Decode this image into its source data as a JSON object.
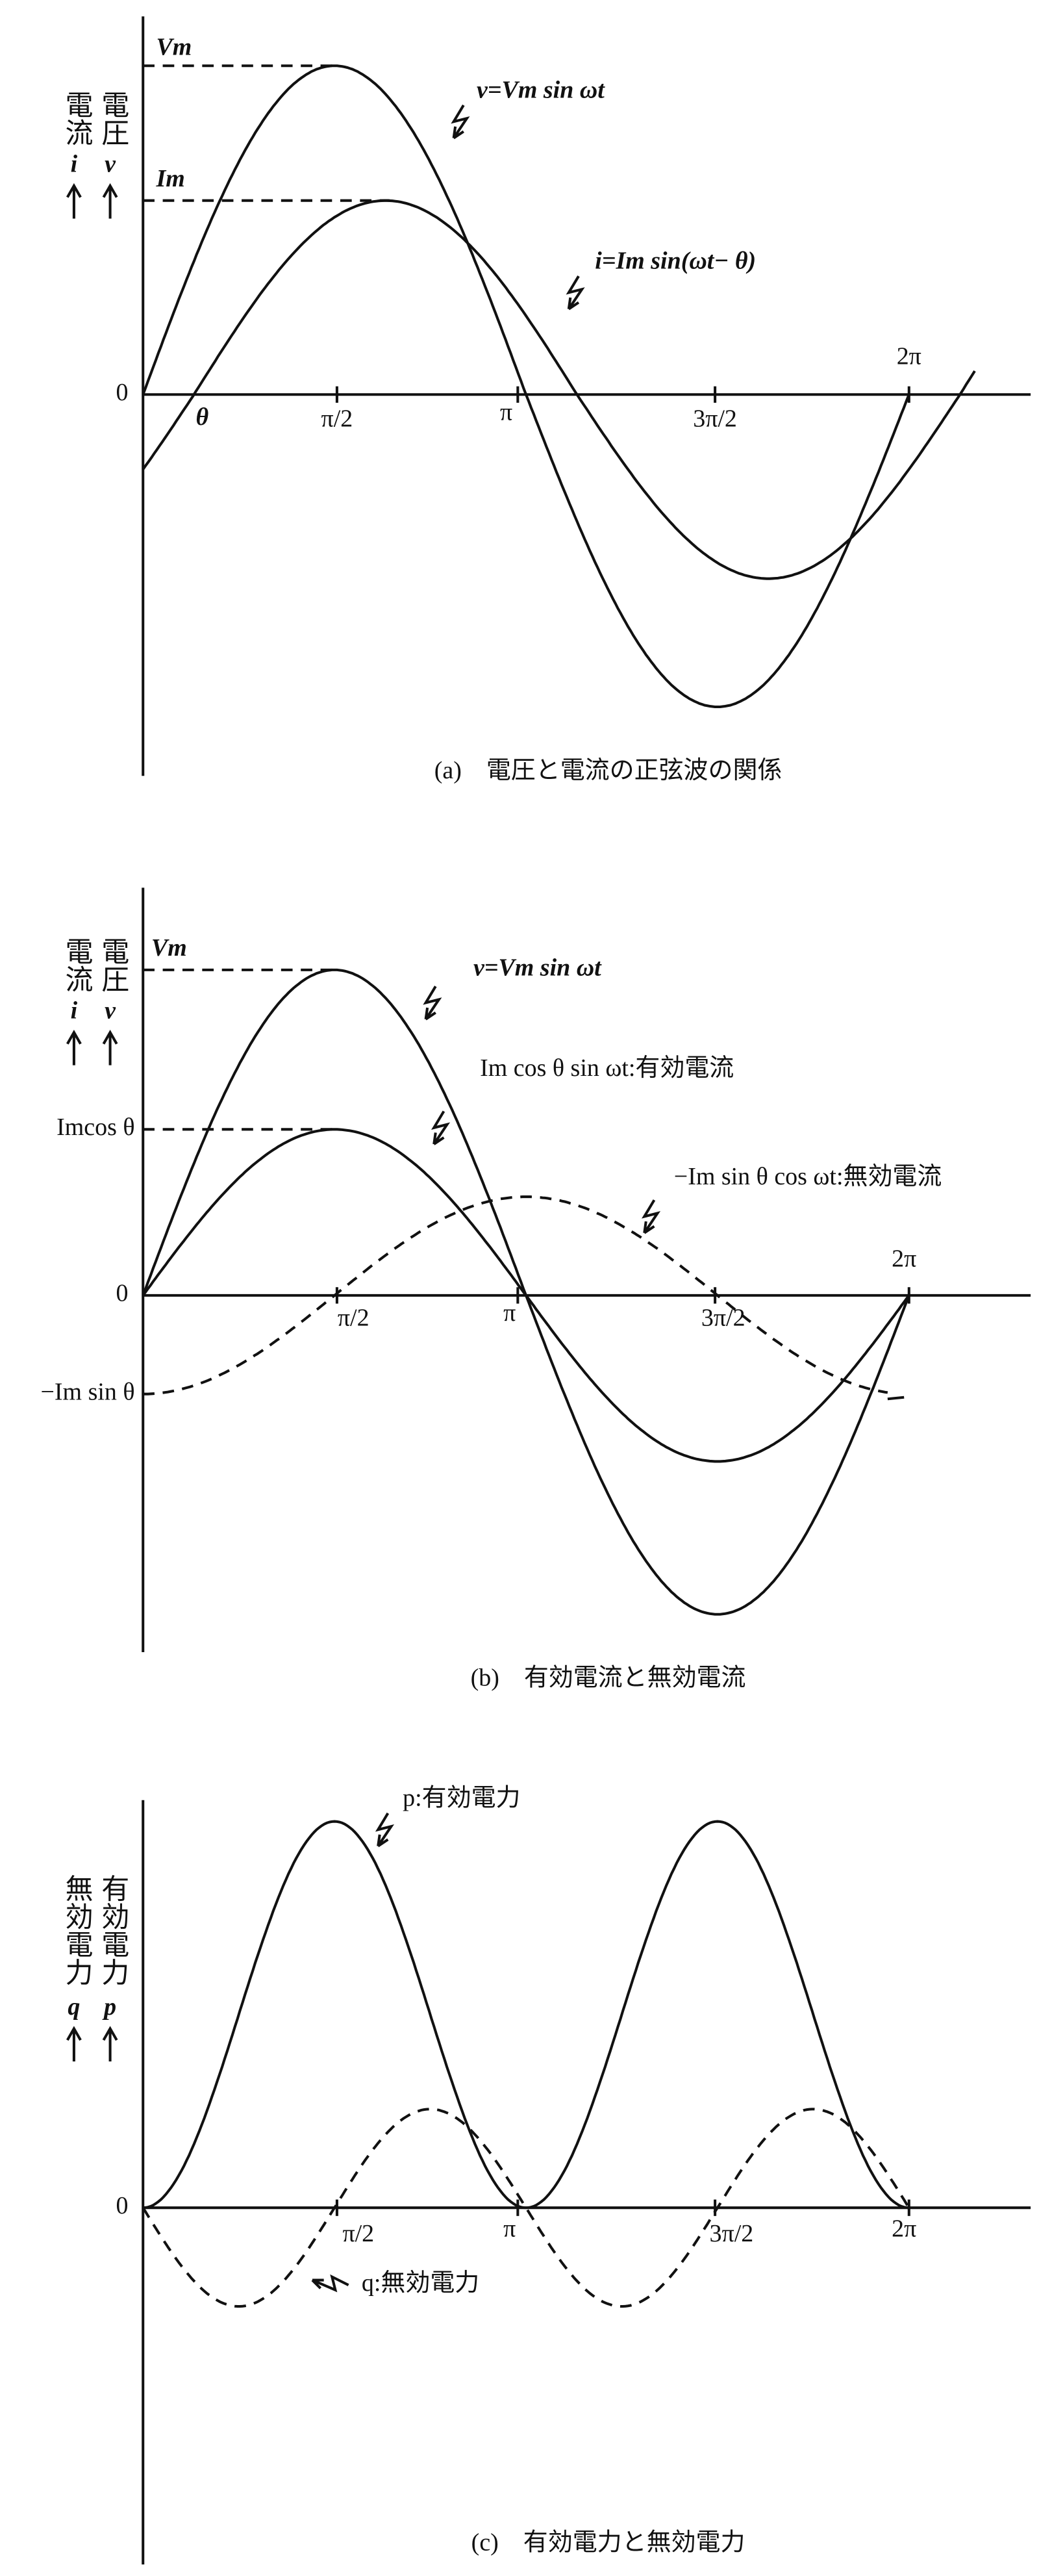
{
  "panels": [
    {
      "caption": "(a)　電圧と電流の正弦波の関係",
      "axis_labels": [
        "電流",
        "i",
        "電圧",
        "v"
      ],
      "y_labels": [
        "Vm",
        "Im",
        "0"
      ],
      "x_labels": [
        "θ",
        "π/2",
        "π",
        "3π/2",
        "2π"
      ],
      "annotations": [
        "v=Vm sin ωt",
        "i=Im sin(ωt− θ)"
      ]
    },
    {
      "caption": "(b)　有効電流と無効電流",
      "axis_labels": [
        "電流",
        "i",
        "電圧",
        "v"
      ],
      "y_labels": [
        "Vm",
        "Imcos θ",
        "0",
        "−Im sin θ"
      ],
      "x_labels": [
        "π/2",
        "π",
        "3π/2",
        "2π"
      ],
      "annotations": [
        "v=Vm sin ωt",
        "Im cos θ sin ωt:有効電流",
        "−Im sin θ cos ωt:無効電流"
      ]
    },
    {
      "caption": "(c)　有効電力と無効電力",
      "axis_labels": [
        "無効電力",
        "q",
        "有効電力",
        "p"
      ],
      "y_labels": [
        "0"
      ],
      "x_labels": [
        "π/2",
        "π",
        "3π/2",
        "2π"
      ],
      "annotations": [
        "p:有効電力",
        "q:無効電力"
      ]
    }
  ]
}
